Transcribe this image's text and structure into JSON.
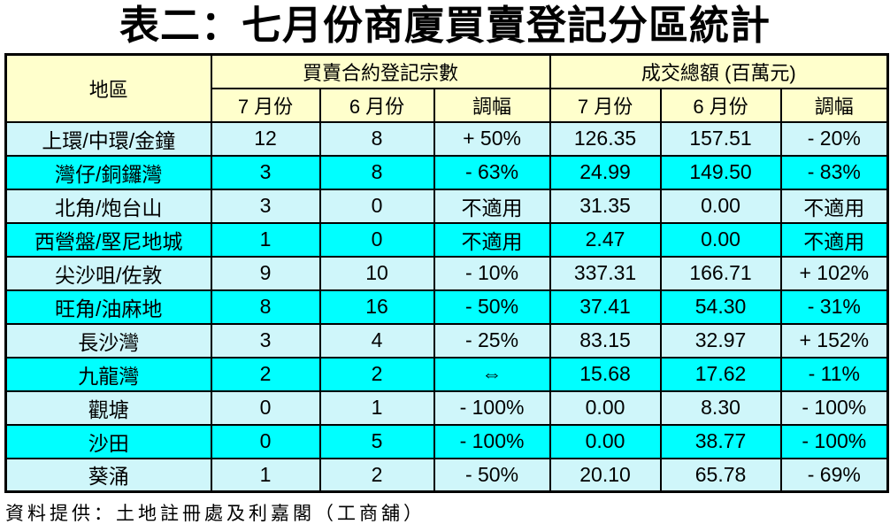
{
  "title": "表二：七月份商廈買賣登記分區統計",
  "footer": "資料提供：土地註冊處及利嘉閣（工商舖）",
  "colors": {
    "header_bg": "#FFFFCC",
    "row_light": "#CFF6FA",
    "row_bright": "#00FFFF",
    "border": "#000000",
    "text": "#000000"
  },
  "table": {
    "corner_header": "地區",
    "groups": [
      {
        "label": "買賣合約登記宗數",
        "columns": [
          "7 月份",
          "6 月份",
          "調幅"
        ]
      },
      {
        "label": "成交總額 (百萬元)",
        "columns": [
          "7 月份",
          "6 月份",
          "調幅"
        ]
      }
    ],
    "rows": [
      {
        "district": "上環/中環/金鐘",
        "values": [
          "12",
          "8",
          "+ 50%",
          "126.35",
          "157.51",
          "- 20%"
        ]
      },
      {
        "district": "灣仔/銅鑼灣",
        "values": [
          "3",
          "8",
          "- 63%",
          "24.99",
          "149.50",
          "- 83%"
        ]
      },
      {
        "district": "北角/炮台山",
        "values": [
          "3",
          "0",
          "不適用",
          "31.35",
          "0.00",
          "不適用"
        ]
      },
      {
        "district": "西營盤/堅尼地城",
        "values": [
          "1",
          "0",
          "不適用",
          "2.47",
          "0.00",
          "不適用"
        ]
      },
      {
        "district": "尖沙咀/佐敦",
        "values": [
          "9",
          "10",
          "- 10%",
          "337.31",
          "166.71",
          "+ 102%"
        ]
      },
      {
        "district": "旺角/油麻地",
        "values": [
          "8",
          "16",
          "- 50%",
          "37.41",
          "54.30",
          "- 31%"
        ]
      },
      {
        "district": "長沙灣",
        "values": [
          "3",
          "4",
          "- 25%",
          "83.15",
          "32.97",
          "+ 152%"
        ]
      },
      {
        "district": "九龍灣",
        "values": [
          "2",
          "2",
          "⇔",
          "15.68",
          "17.62",
          "- 11%"
        ]
      },
      {
        "district": "觀塘",
        "values": [
          "0",
          "1",
          "- 100%",
          "0.00",
          "8.30",
          "- 100%"
        ]
      },
      {
        "district": "沙田",
        "values": [
          "0",
          "5",
          "- 100%",
          "0.00",
          "38.77",
          "- 100%"
        ]
      },
      {
        "district": "葵涌",
        "values": [
          "1",
          "2",
          "- 50%",
          "20.10",
          "65.78",
          "- 69%"
        ]
      }
    ]
  },
  "chart_data": {
    "type": "table",
    "title": "表二：七月份商廈買賣登記分區統計",
    "source": "資料提供：土地註冊處及利嘉閣（工商舖）",
    "row_header": "地區",
    "column_groups": [
      {
        "label": "買賣合約登記宗數",
        "columns": [
          "7月份",
          "6月份",
          "調幅"
        ]
      },
      {
        "label": "成交總額 (百萬元)",
        "columns": [
          "7月份",
          "6月份",
          "調幅"
        ]
      }
    ],
    "rows": [
      {
        "district": "上環/中環/金鐘",
        "contracts_jul": 12,
        "contracts_jun": 8,
        "contracts_change": "+50%",
        "amount_jul": 126.35,
        "amount_jun": 157.51,
        "amount_change": "-20%"
      },
      {
        "district": "灣仔/銅鑼灣",
        "contracts_jul": 3,
        "contracts_jun": 8,
        "contracts_change": "-63%",
        "amount_jul": 24.99,
        "amount_jun": 149.5,
        "amount_change": "-83%"
      },
      {
        "district": "北角/炮台山",
        "contracts_jul": 3,
        "contracts_jun": 0,
        "contracts_change": "不適用",
        "amount_jul": 31.35,
        "amount_jun": 0.0,
        "amount_change": "不適用"
      },
      {
        "district": "西營盤/堅尼地城",
        "contracts_jul": 1,
        "contracts_jun": 0,
        "contracts_change": "不適用",
        "amount_jul": 2.47,
        "amount_jun": 0.0,
        "amount_change": "不適用"
      },
      {
        "district": "尖沙咀/佐敦",
        "contracts_jul": 9,
        "contracts_jun": 10,
        "contracts_change": "-10%",
        "amount_jul": 337.31,
        "amount_jun": 166.71,
        "amount_change": "+102%"
      },
      {
        "district": "旺角/油麻地",
        "contracts_jul": 8,
        "contracts_jun": 16,
        "contracts_change": "-50%",
        "amount_jul": 37.41,
        "amount_jun": 54.3,
        "amount_change": "-31%"
      },
      {
        "district": "長沙灣",
        "contracts_jul": 3,
        "contracts_jun": 4,
        "contracts_change": "-25%",
        "amount_jul": 83.15,
        "amount_jun": 32.97,
        "amount_change": "+152%"
      },
      {
        "district": "九龍灣",
        "contracts_jul": 2,
        "contracts_jun": 2,
        "contracts_change": "⇔",
        "amount_jul": 15.68,
        "amount_jun": 17.62,
        "amount_change": "-11%"
      },
      {
        "district": "觀塘",
        "contracts_jul": 0,
        "contracts_jun": 1,
        "contracts_change": "-100%",
        "amount_jul": 0.0,
        "amount_jun": 8.3,
        "amount_change": "-100%"
      },
      {
        "district": "沙田",
        "contracts_jul": 0,
        "contracts_jun": 5,
        "contracts_change": "-100%",
        "amount_jul": 0.0,
        "amount_jun": 38.77,
        "amount_change": "-100%"
      },
      {
        "district": "葵涌",
        "contracts_jul": 1,
        "contracts_jun": 2,
        "contracts_change": "-50%",
        "amount_jul": 20.1,
        "amount_jun": 65.78,
        "amount_change": "-69%"
      }
    ]
  }
}
